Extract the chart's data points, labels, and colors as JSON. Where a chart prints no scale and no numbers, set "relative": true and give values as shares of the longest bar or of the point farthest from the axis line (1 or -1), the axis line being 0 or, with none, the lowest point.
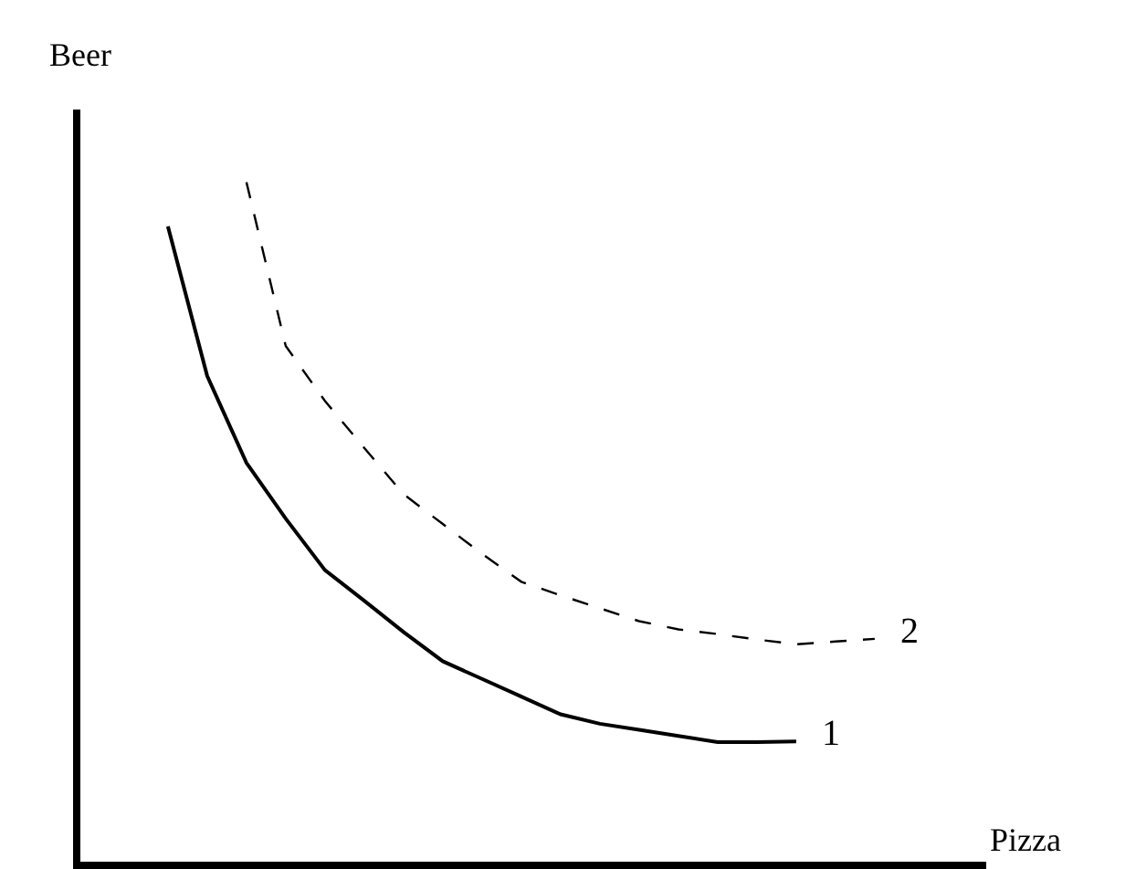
{
  "chart_data": {
    "type": "line",
    "relative": true,
    "xlabel": "Pizza",
    "ylabel": "Beer",
    "marker": "none",
    "legend": false,
    "categories": [
      null,
      null,
      null,
      null,
      null,
      null,
      null,
      null,
      null,
      null,
      null,
      null,
      null,
      null,
      null,
      null,
      null,
      null,
      null
    ],
    "series": [
      {
        "name": "1",
        "color": "#000000",
        "line_style": "solid",
        "values": [
          0.935,
          0.715,
          0.587,
          0.505,
          0.429,
          0.384,
          0.338,
          0.295,
          0.269,
          0.243,
          0.217,
          0.203,
          0.194,
          0.185,
          0.176,
          0.176,
          0.177,
          null,
          null
        ]
      },
      {
        "name": "2",
        "color": "#000000",
        "line_style": "dashed",
        "values": [
          null,
          null,
          1.0,
          0.759,
          0.678,
          0.609,
          0.541,
          0.497,
          0.453,
          0.412,
          0.392,
          0.373,
          0.354,
          0.342,
          0.335,
          0.327,
          0.32,
          0.324,
          0.328
        ]
      }
    ]
  }
}
